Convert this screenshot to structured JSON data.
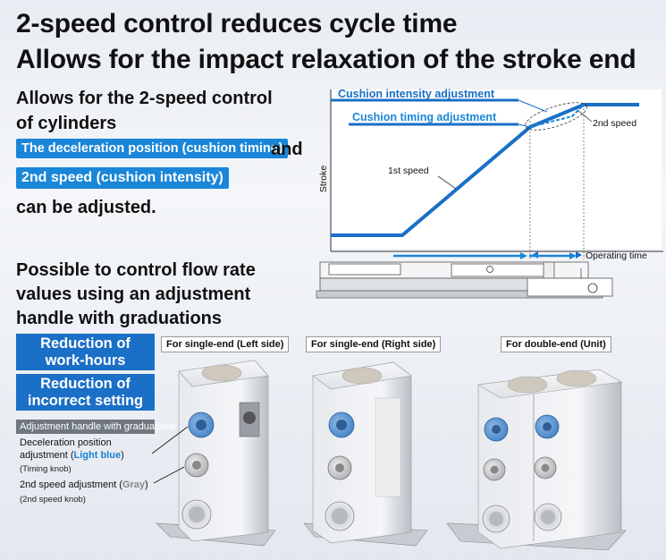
{
  "headline1": "2-speed control reduces cycle time",
  "headline2": "Allows for the impact relaxation of the stroke end",
  "intro": {
    "line1": "Allows for the 2-speed control",
    "line2": "of cylinders",
    "tag1": "The deceleration position (cushion timing)",
    "and": "and",
    "tag2": "2nd speed (cushion intensity)",
    "line3": "can be adjusted."
  },
  "graph": {
    "label_intensity": "Cushion intensity adjustment",
    "label_timing": "Cushion timing adjustment",
    "label_second": "2nd speed",
    "label_first": "1st speed",
    "ylabel": "Stroke",
    "xlabel": "Operating time"
  },
  "flow": {
    "line1": "Possible to control flow rate",
    "line2": "values using an adjustment",
    "line3": "handle with graduations"
  },
  "benefits": {
    "box1_l1": "Reduction of",
    "box1_l2": "work-hours",
    "box2_l1": "Reduction of",
    "box2_l2": "incorrect setting"
  },
  "handle": {
    "bar": "Adjustment handle with graduations",
    "decel_l1": "Deceleration position",
    "decel_pre": "adjustment (",
    "decel_color": "Light blue",
    "decel_post": ")",
    "timing_knob": "(Timing knob)",
    "second_pre": "2nd speed adjustment (",
    "second_color": "Gray",
    "second_post": ")",
    "second_knob": "(2nd speed knob)"
  },
  "products": {
    "left": "For single-end (Left side)",
    "right": "For single-end (Right side)",
    "double": "For double-end (Unit)"
  },
  "colors": {
    "accent": "#1a86d8",
    "dark_blue": "#1a6fc6",
    "gray_bar": "#6f7780"
  }
}
